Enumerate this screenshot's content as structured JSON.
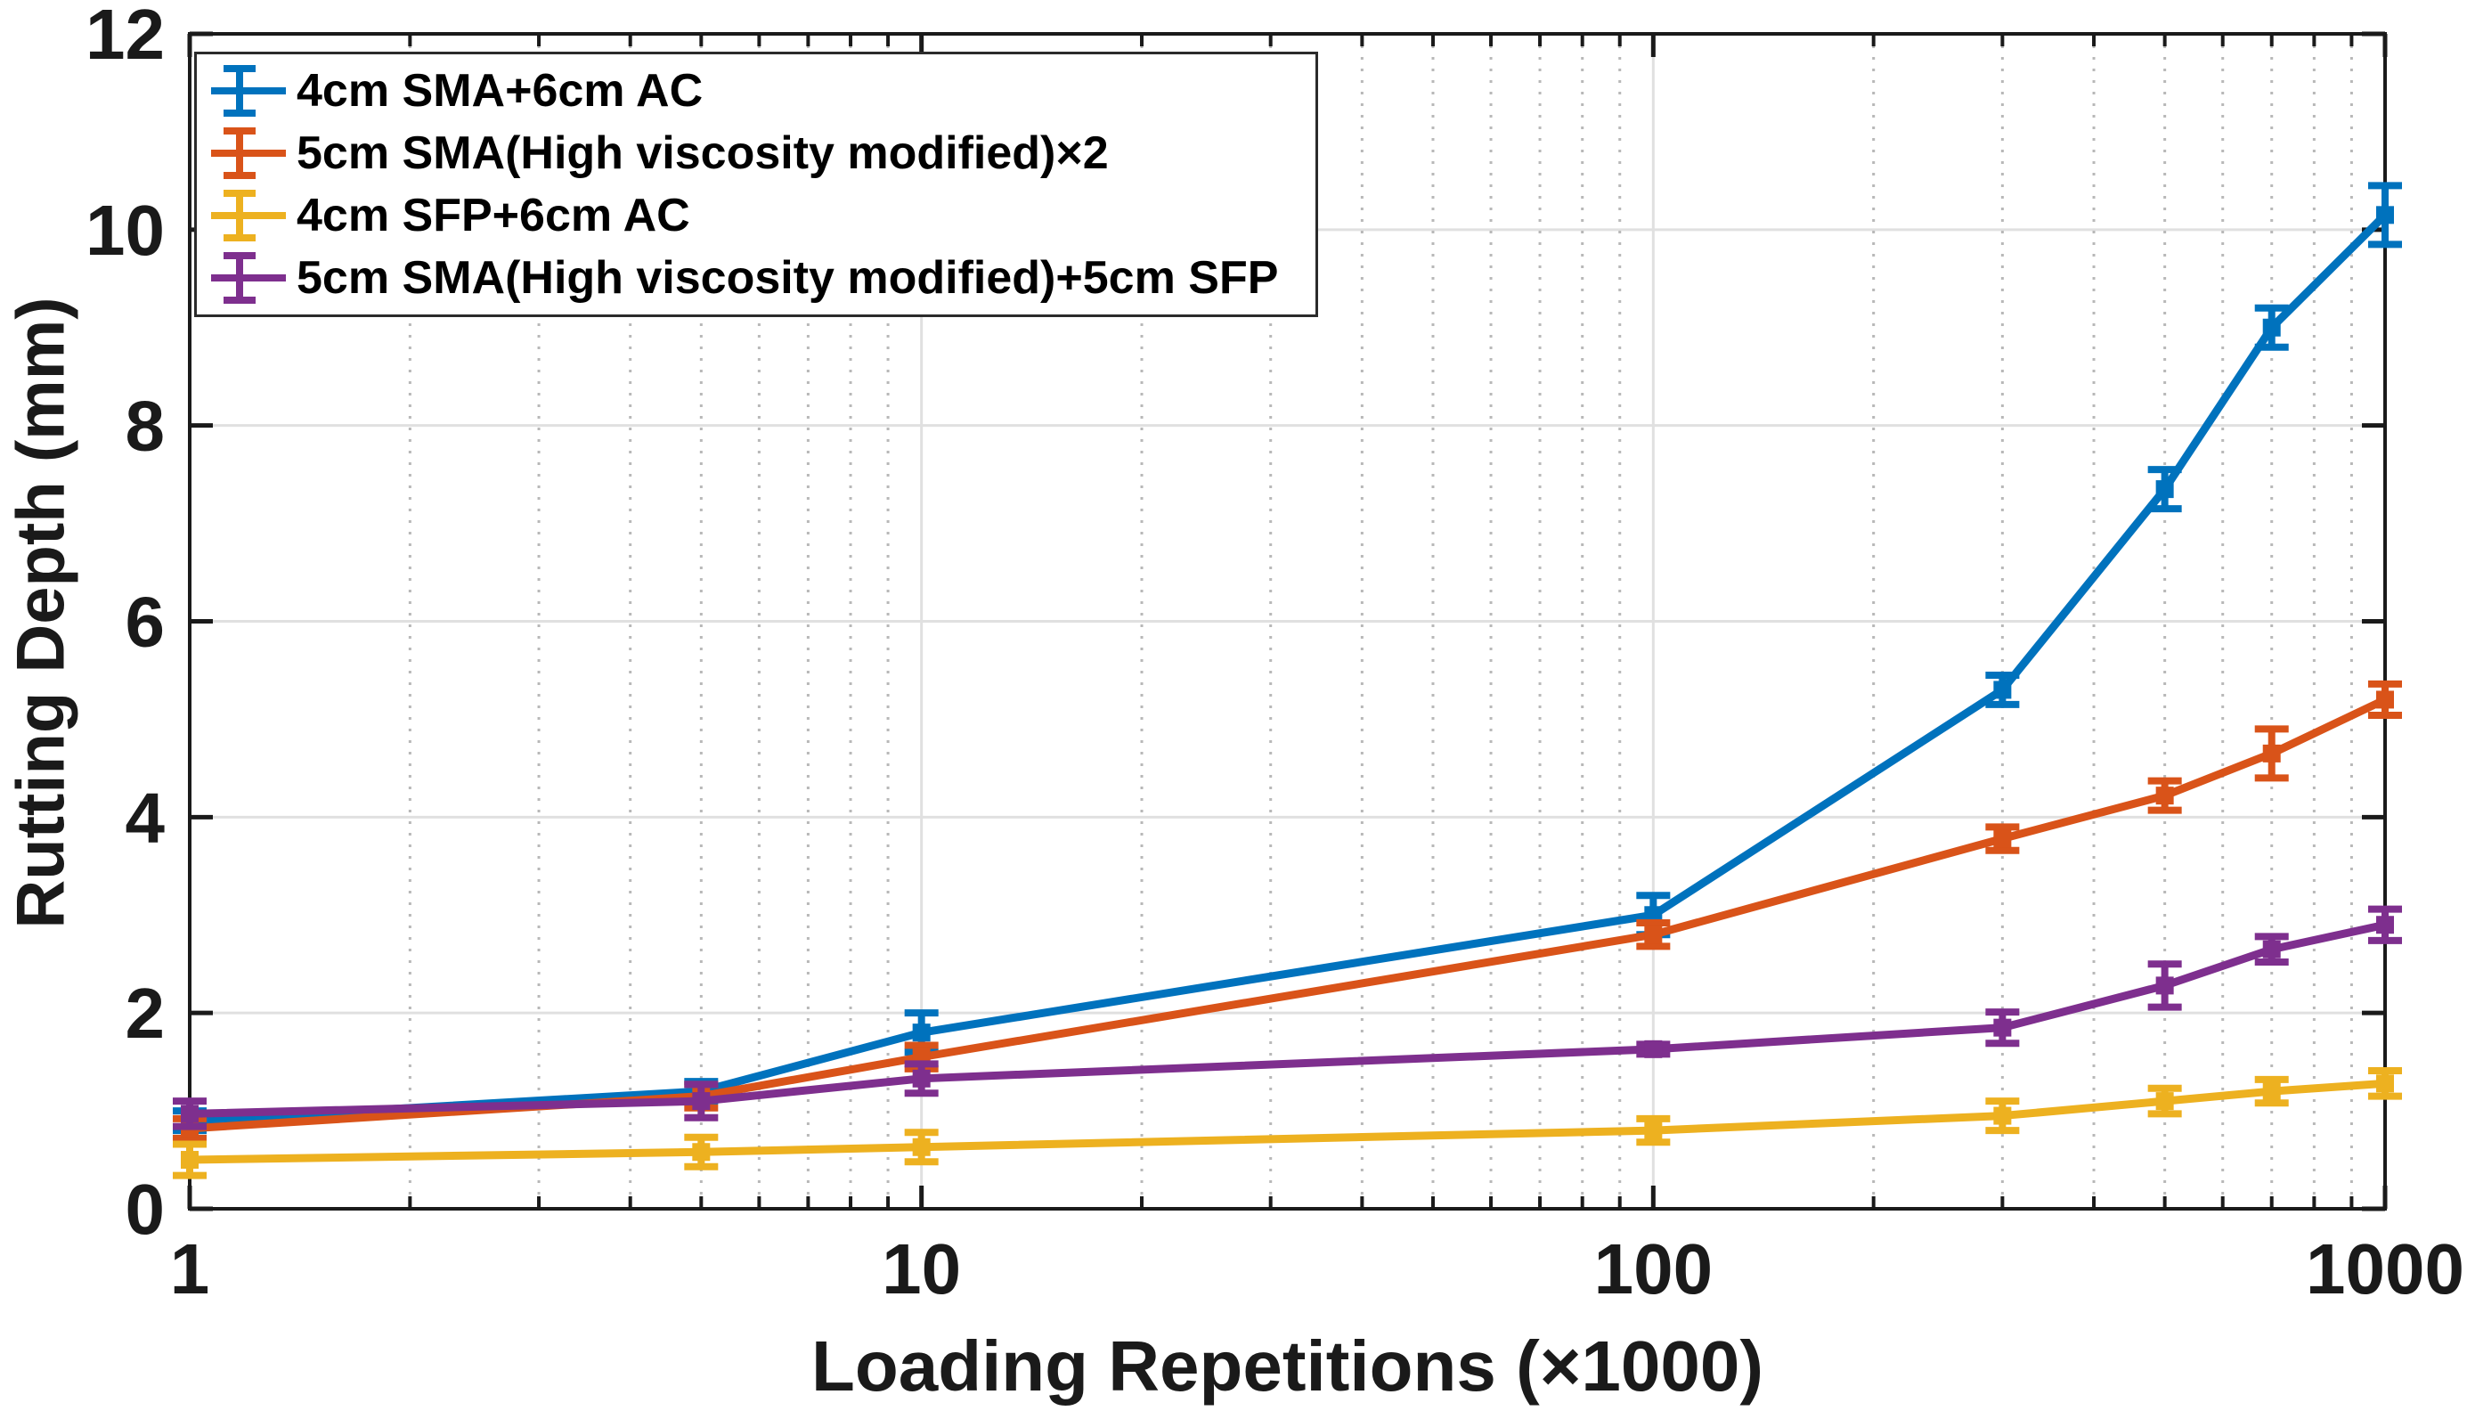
{
  "figure": {
    "xlabel": "Loading Repetitions (×1000)",
    "ylabel": "Rutting Depth (mm)",
    "background_color": "#ffffff",
    "axis_color": "#1a1a1a",
    "major_grid_color": "#e0e0e0",
    "minor_grid_color": "#b8b8b8"
  },
  "chart_data": {
    "type": "line",
    "subtype": "errorbar",
    "title": "",
    "xlabel": "Loading Repetitions (×1000)",
    "ylabel": "Rutting Depth (mm)",
    "x_scale": "log",
    "xlim": [
      1,
      1000
    ],
    "ylim": [
      0,
      12
    ],
    "x": [
      1,
      5,
      10,
      100,
      300,
      500,
      700,
      1000
    ],
    "x_major_ticks": [
      1,
      10,
      100,
      1000
    ],
    "x_tick_labels": [
      "1",
      "10",
      "100",
      "1000"
    ],
    "y_ticks": [
      0,
      2,
      4,
      6,
      8,
      10,
      12
    ],
    "y_tick_labels": [
      "0",
      "2",
      "4",
      "6",
      "8",
      "10",
      "12"
    ],
    "grid": "y-major solid, x-major solid, x-minor dotted",
    "legend_position": "top-left inside plot",
    "marker": "square",
    "series": [
      {
        "name": "4cm SMA+6cm AC",
        "color": "#0072BD",
        "values": [
          0.9,
          1.2,
          1.8,
          3.0,
          5.3,
          7.35,
          9.0,
          10.15
        ],
        "errors": [
          0.1,
          0.1,
          0.2,
          0.2,
          0.15,
          0.2,
          0.2,
          0.3
        ]
      },
      {
        "name": "5cm SMA(High viscosity modified)×2",
        "color": "#D95319",
        "values": [
          0.82,
          1.15,
          1.55,
          2.8,
          3.78,
          4.22,
          4.65,
          5.2
        ],
        "errors": [
          0.1,
          0.12,
          0.12,
          0.12,
          0.12,
          0.15,
          0.25,
          0.16
        ]
      },
      {
        "name": "4cm SFP+6cm AC",
        "color": "#EDB120",
        "values": [
          0.5,
          0.58,
          0.63,
          0.8,
          0.95,
          1.1,
          1.2,
          1.28
        ],
        "errors": [
          0.16,
          0.15,
          0.15,
          0.12,
          0.15,
          0.13,
          0.12,
          0.13
        ]
      },
      {
        "name": "5cm SMA(High viscosity modified)+5cm SFP",
        "color": "#7E2F8E",
        "values": [
          0.97,
          1.1,
          1.33,
          1.63,
          1.85,
          2.28,
          2.65,
          2.9
        ],
        "errors": [
          0.13,
          0.17,
          0.15,
          0.05,
          0.16,
          0.22,
          0.13,
          0.16
        ]
      }
    ]
  }
}
